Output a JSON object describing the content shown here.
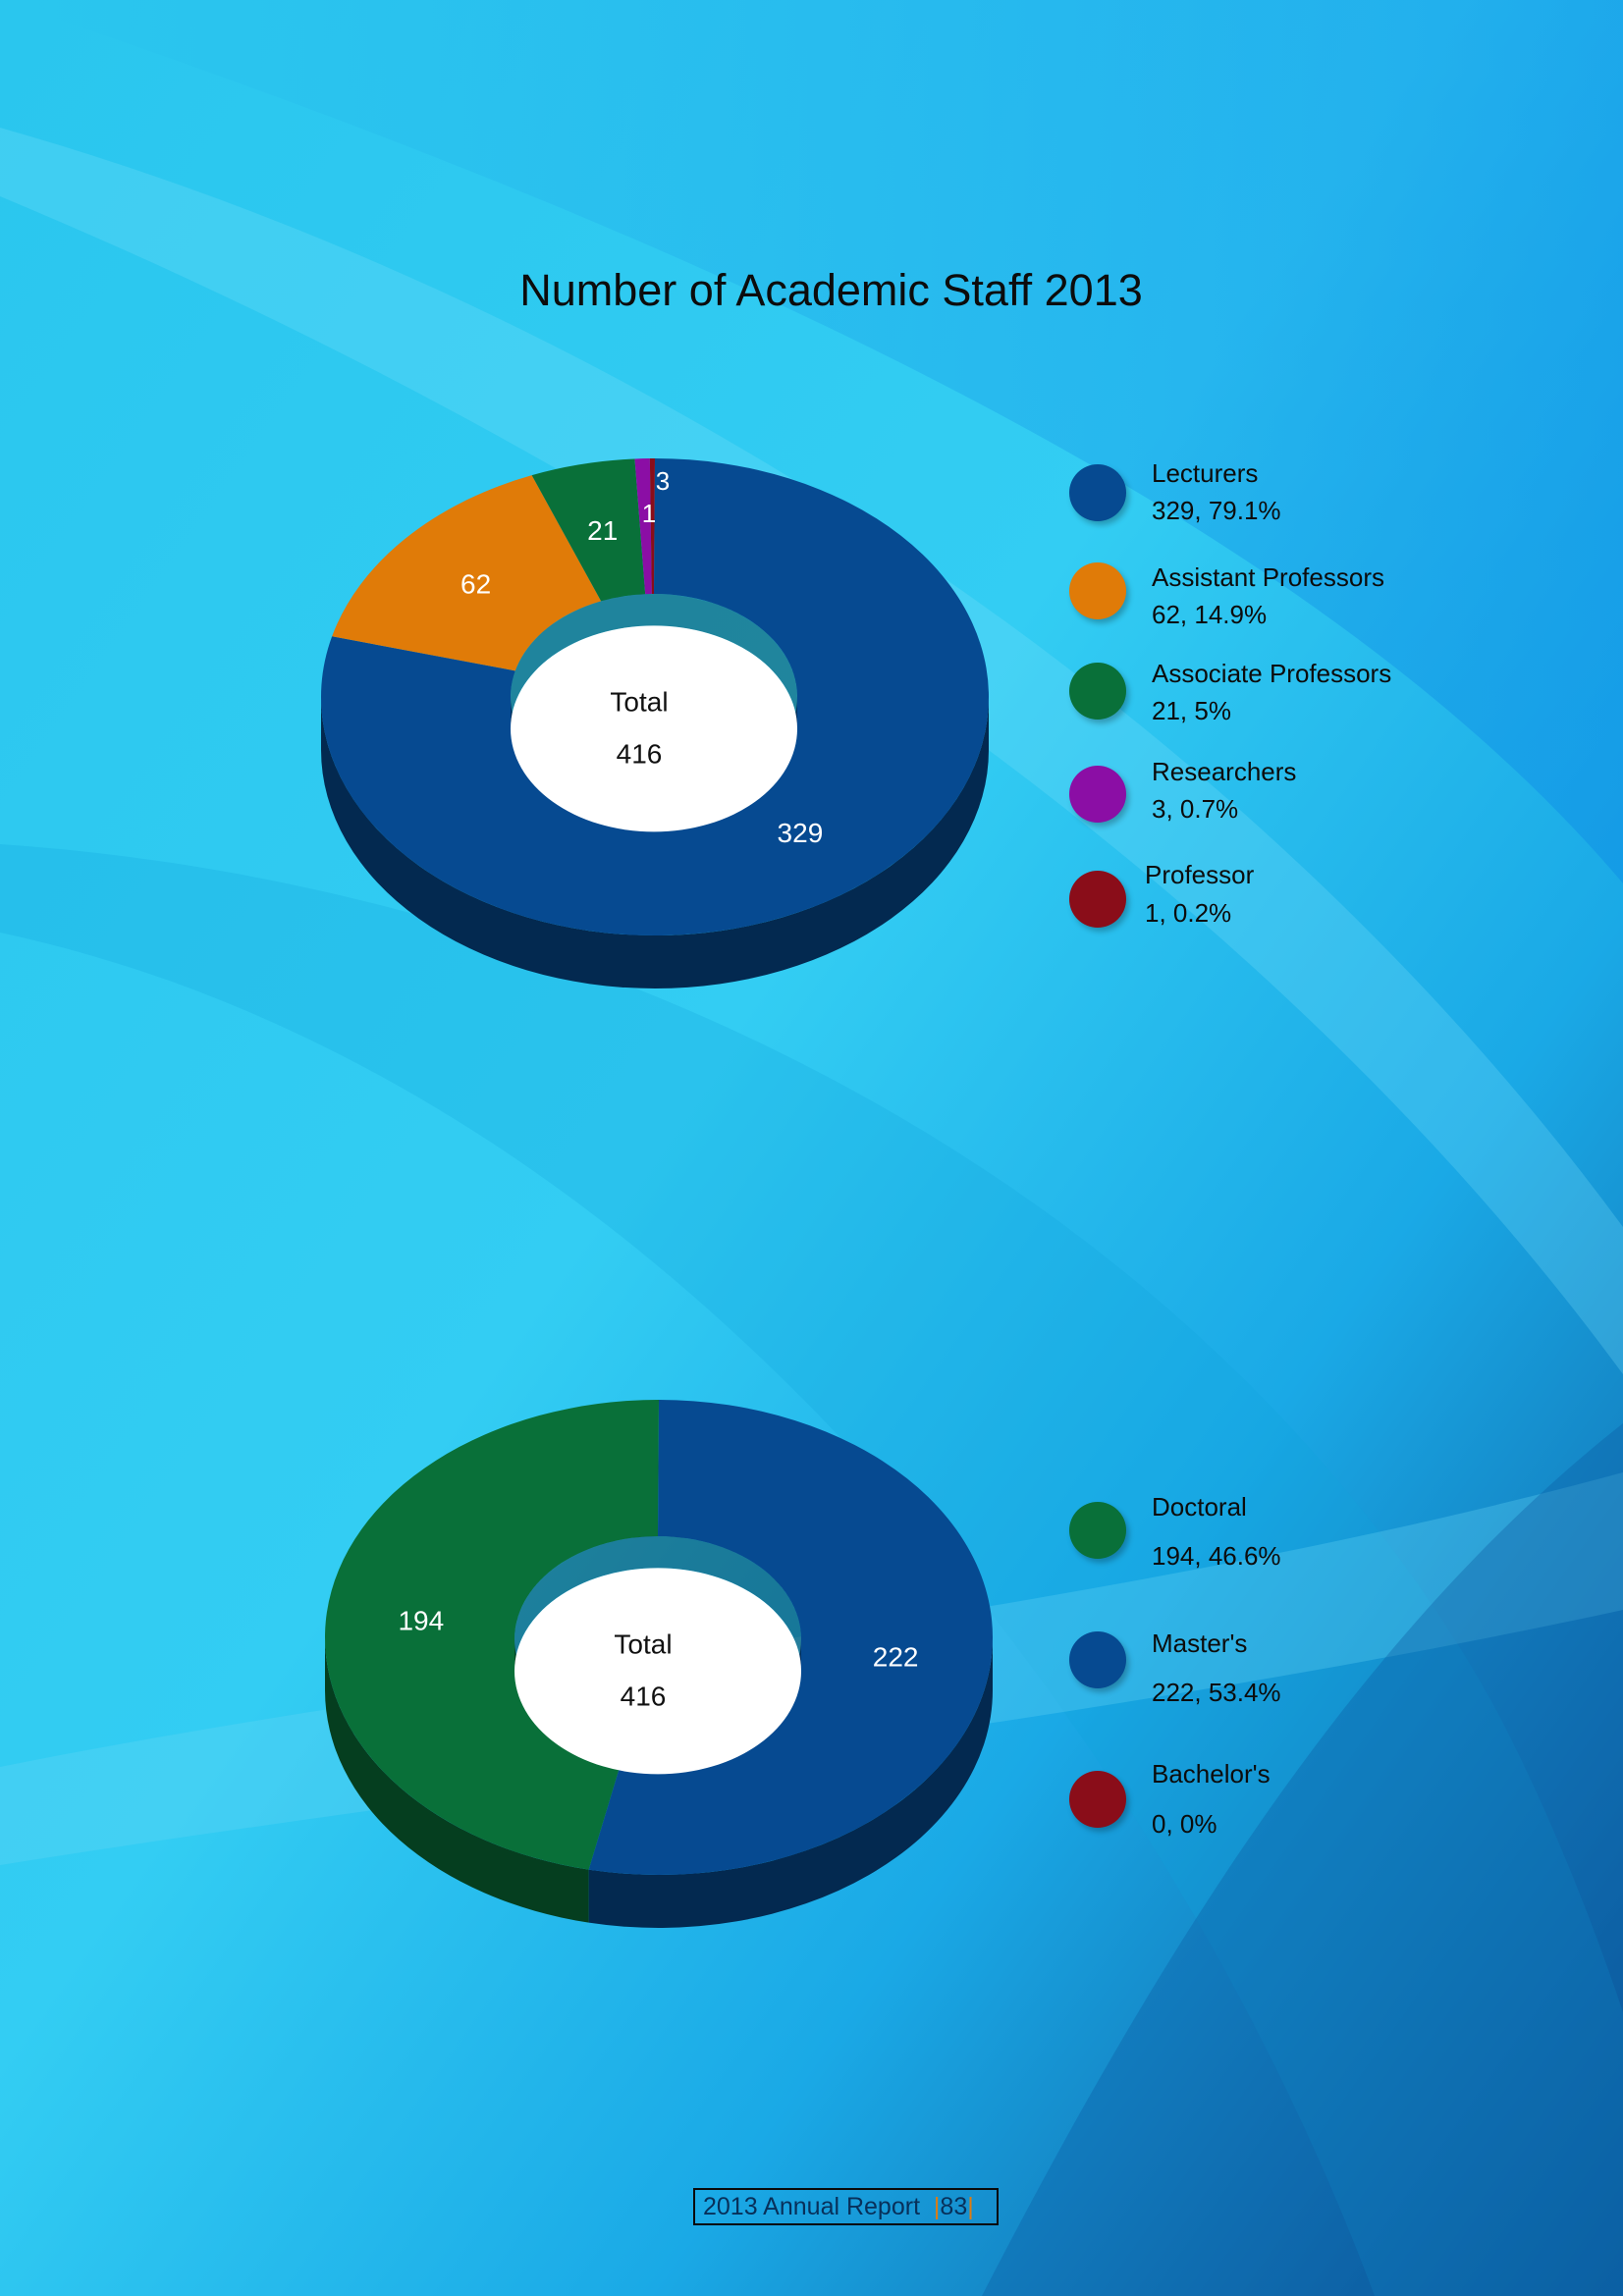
{
  "title": "Number of Academic Staff 2013",
  "colors": {
    "lecturers": "#064a91",
    "assistant_professors": "#e07b08",
    "associate_professors": "#097039",
    "researchers": "#8b0ea5",
    "professor": "#8a0d19"
  },
  "chart_data": [
    {
      "type": "pie",
      "variant": "donut-3d",
      "center_label": "Total",
      "center_value": "416",
      "slices": [
        {
          "name": "Lecturers",
          "value": 329,
          "percent": "79.1%",
          "label": "329",
          "color": "#064a91"
        },
        {
          "name": "Assistant Professors",
          "value": 62,
          "percent": "14.9%",
          "label": "62",
          "color": "#e07b08"
        },
        {
          "name": "Associate Professors",
          "value": 21,
          "percent": "5%",
          "label": "21",
          "color": "#097039"
        },
        {
          "name": "Researchers",
          "value": 3,
          "percent": "0.7%",
          "label": "3",
          "color": "#8b0ea5"
        },
        {
          "name": "Professor",
          "value": 1,
          "percent": "0.2%",
          "label": "1",
          "color": "#8a0d19"
        }
      ],
      "legend": [
        {
          "name": "Lecturers",
          "value_text": "329, 79.1%"
        },
        {
          "name": "Assistant Professors",
          "value_text": "62, 14.9%"
        },
        {
          "name": "Associate Professors",
          "value_text": "21, 5%"
        },
        {
          "name": "Researchers",
          "value_text": "3, 0.7%"
        },
        {
          "name": "Professor",
          "value_text": "1, 0.2%"
        }
      ]
    },
    {
      "type": "pie",
      "variant": "donut-3d",
      "center_label": "Total",
      "center_value": "416",
      "slices": [
        {
          "name": "Master's",
          "value": 222,
          "percent": "53.4%",
          "label": "222",
          "color": "#064a91"
        },
        {
          "name": "Bachelor's",
          "value": 0,
          "percent": "0%",
          "label": "",
          "color": "#8a0d19"
        },
        {
          "name": "Doctoral",
          "value": 194,
          "percent": "46.6%",
          "label": "194",
          "color": "#097039"
        }
      ],
      "legend": [
        {
          "name": "Doctoral",
          "value_text": "194, 46.6%"
        },
        {
          "name": "Master's",
          "value_text": "222, 53.4%"
        },
        {
          "name": "Bachelor's",
          "value_text": "0, 0%"
        }
      ]
    }
  ],
  "footer": {
    "text": "2013 Annual Report",
    "page": "83"
  }
}
